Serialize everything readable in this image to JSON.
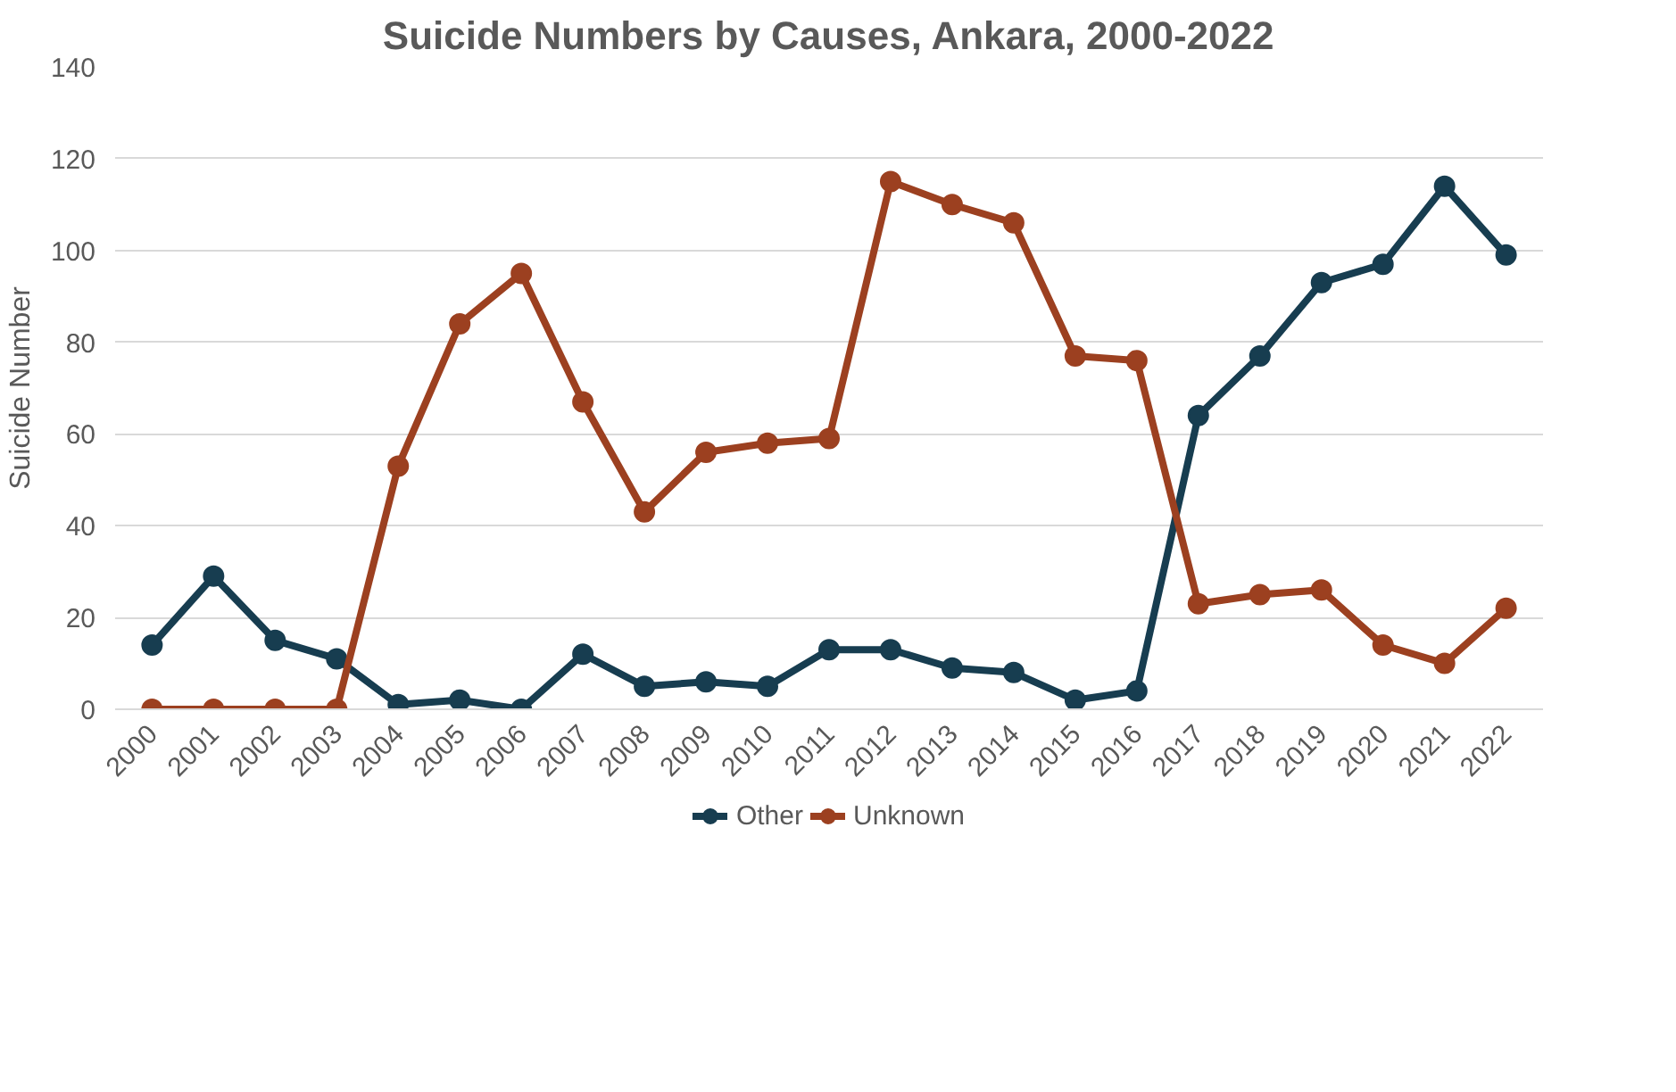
{
  "chart_data": {
    "type": "line",
    "title": "Suicide Numbers by Causes, Ankara, 2000-2022",
    "ylabel": "Suicide Number",
    "categories": [
      "2000",
      "2001",
      "2002",
      "2003",
      "2004",
      "2005",
      "2006",
      "2007",
      "2008",
      "2009",
      "2010",
      "2011",
      "2012",
      "2013",
      "2014",
      "2015",
      "2016",
      "2017",
      "2018",
      "2019",
      "2020",
      "2021",
      "2022"
    ],
    "series": [
      {
        "name": "Other",
        "color": "#173d50",
        "values": [
          14,
          29,
          15,
          11,
          1,
          2,
          0,
          12,
          5,
          6,
          5,
          13,
          13,
          9,
          8,
          2,
          4,
          64,
          77,
          93,
          97,
          114,
          99
        ]
      },
      {
        "name": "Unknown",
        "color": "#9c4020",
        "values": [
          0,
          0,
          0,
          0,
          53,
          84,
          95,
          67,
          43,
          56,
          58,
          59,
          115,
          110,
          106,
          77,
          76,
          23,
          25,
          26,
          14,
          10,
          22
        ]
      }
    ],
    "ylim": [
      0,
      140
    ],
    "yticks": [
      0,
      20,
      40,
      60,
      80,
      100,
      120,
      140
    ],
    "grid": "y",
    "legend": "bottom",
    "marker": "circle",
    "line_style": "solid"
  }
}
